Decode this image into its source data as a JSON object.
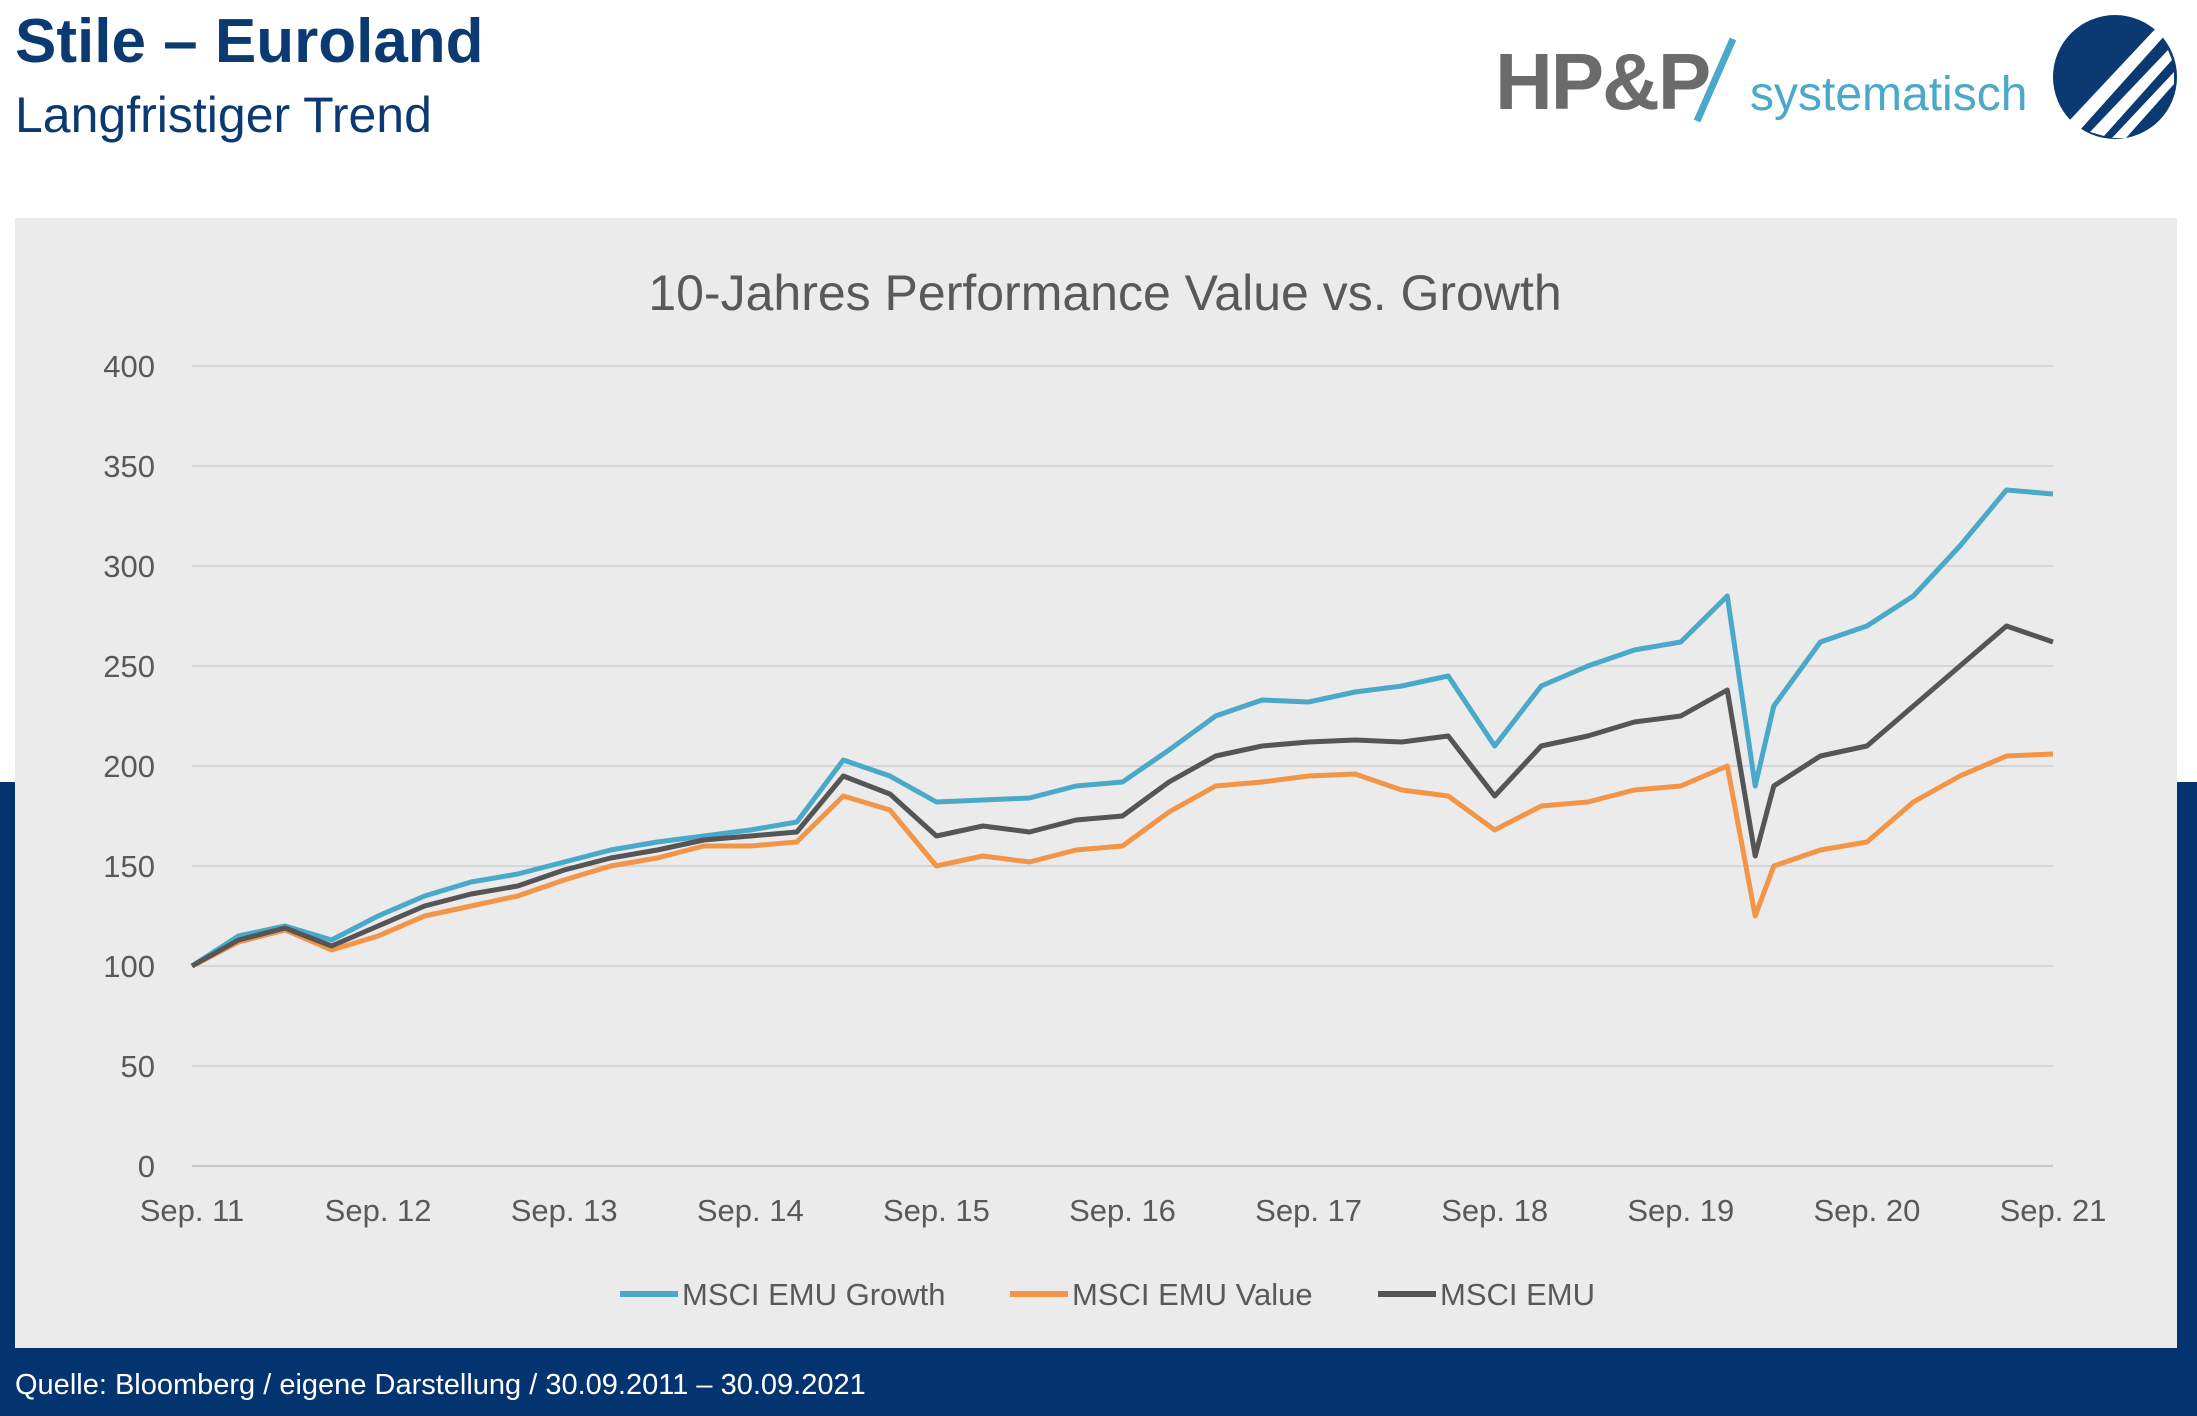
{
  "header": {
    "title": "Stile – Euroland",
    "subtitle": "Langfristiger Trend"
  },
  "logo": {
    "brand": "HP&P",
    "tagline": "systematisch"
  },
  "footer": {
    "source": "Quelle: Bloomberg / eigene Darstellung / 30.09.2011 – 30.09.2021"
  },
  "colors": {
    "growth": "#4aa8c9",
    "value": "#f39547",
    "emu": "#555555",
    "navy": "#03346f",
    "chart_bg": "#ebebeb"
  },
  "chart_data": {
    "type": "line",
    "title": "10-Jahres Performance Value vs. Growth",
    "xlabel": "",
    "ylabel": "",
    "ylim": [
      0,
      400
    ],
    "yticks": [
      0,
      50,
      100,
      150,
      200,
      250,
      300,
      350,
      400
    ],
    "xticks": [
      "Sep. 11",
      "Sep. 12",
      "Sep. 13",
      "Sep. 14",
      "Sep. 15",
      "Sep. 16",
      "Sep. 17",
      "Sep. 18",
      "Sep. 19",
      "Sep. 20",
      "Sep. 21"
    ],
    "grid": true,
    "legend": "bottom",
    "x": [
      2011.75,
      2012.0,
      2012.25,
      2012.5,
      2012.75,
      2013.0,
      2013.25,
      2013.5,
      2013.75,
      2014.0,
      2014.25,
      2014.5,
      2014.75,
      2015.0,
      2015.25,
      2015.5,
      2015.75,
      2016.0,
      2016.25,
      2016.5,
      2016.75,
      2017.0,
      2017.25,
      2017.5,
      2017.75,
      2018.0,
      2018.25,
      2018.5,
      2018.75,
      2019.0,
      2019.25,
      2019.5,
      2019.75,
      2020.0,
      2020.15,
      2020.25,
      2020.5,
      2020.75,
      2021.0,
      2021.25,
      2021.5,
      2021.75
    ],
    "series": [
      {
        "name": "MSCI EMU Growth",
        "values": [
          100,
          115,
          120,
          113,
          125,
          135,
          142,
          146,
          152,
          158,
          162,
          165,
          168,
          172,
          203,
          195,
          182,
          183,
          184,
          190,
          192,
          208,
          225,
          233,
          232,
          237,
          240,
          245,
          210,
          240,
          250,
          258,
          262,
          285,
          190,
          230,
          262,
          270,
          285,
          310,
          338,
          336
        ]
      },
      {
        "name": "MSCI EMU Value",
        "values": [
          100,
          112,
          118,
          108,
          115,
          125,
          130,
          135,
          143,
          150,
          154,
          160,
          160,
          162,
          185,
          178,
          150,
          155,
          152,
          158,
          160,
          177,
          190,
          192,
          195,
          196,
          188,
          185,
          168,
          180,
          182,
          188,
          190,
          200,
          125,
          150,
          158,
          162,
          182,
          195,
          205,
          206
        ]
      },
      {
        "name": "MSCI EMU",
        "values": [
          100,
          113,
          119,
          110,
          120,
          130,
          136,
          140,
          148,
          154,
          158,
          163,
          165,
          167,
          195,
          186,
          165,
          170,
          167,
          173,
          175,
          192,
          205,
          210,
          212,
          213,
          212,
          215,
          185,
          210,
          215,
          222,
          225,
          238,
          155,
          190,
          205,
          210,
          230,
          250,
          270,
          262
        ]
      }
    ]
  }
}
